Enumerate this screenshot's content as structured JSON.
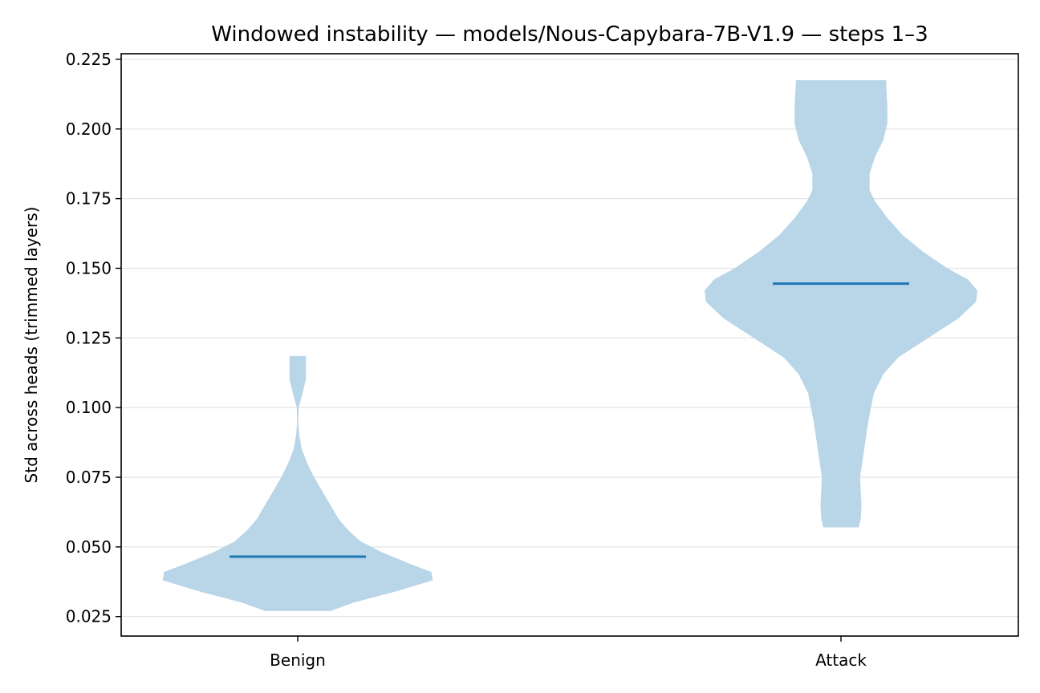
{
  "chart_data": {
    "type": "violin",
    "title": "Windowed instability — models/Nous-Capybara-7B-V1.9 — steps 1–3",
    "xlabel": "",
    "ylabel": "Std across heads (trimmed layers)",
    "categories": [
      "Benign",
      "Attack"
    ],
    "ylim": [
      0.018,
      0.227
    ],
    "yticks": [
      0.025,
      0.05,
      0.075,
      0.1,
      0.125,
      0.15,
      0.175,
      0.2,
      0.225
    ],
    "ytick_labels": [
      "0.025",
      "0.050",
      "0.075",
      "0.100",
      "0.125",
      "0.150",
      "0.175",
      "0.200",
      "0.225"
    ],
    "grid": "y",
    "legend": "none",
    "colors": {
      "violin_fill": "#b9d5e8",
      "median_line": "#1f77b4",
      "grid": "#e3e3e3"
    },
    "series": [
      {
        "category": "Benign",
        "min": 0.027,
        "max": 0.1185,
        "median": 0.0465,
        "density": [
          [
            0.027,
            0.24
          ],
          [
            0.03,
            0.41
          ],
          [
            0.034,
            0.72
          ],
          [
            0.038,
            0.99
          ],
          [
            0.041,
            0.98
          ],
          [
            0.044,
            0.82
          ],
          [
            0.048,
            0.62
          ],
          [
            0.052,
            0.46
          ],
          [
            0.056,
            0.37
          ],
          [
            0.06,
            0.3
          ],
          [
            0.065,
            0.24
          ],
          [
            0.07,
            0.18
          ],
          [
            0.075,
            0.12
          ],
          [
            0.08,
            0.07
          ],
          [
            0.085,
            0.03
          ],
          [
            0.09,
            0.012
          ],
          [
            0.095,
            0.004
          ],
          [
            0.1,
            0.007
          ],
          [
            0.105,
            0.035
          ],
          [
            0.11,
            0.06
          ],
          [
            0.1185,
            0.06
          ]
        ]
      },
      {
        "category": "Attack",
        "min": 0.057,
        "max": 0.2175,
        "median": 0.1445,
        "density": [
          [
            0.057,
            0.13
          ],
          [
            0.06,
            0.145
          ],
          [
            0.065,
            0.15
          ],
          [
            0.075,
            0.14
          ],
          [
            0.085,
            0.17
          ],
          [
            0.095,
            0.2
          ],
          [
            0.105,
            0.24
          ],
          [
            0.112,
            0.31
          ],
          [
            0.118,
            0.42
          ],
          [
            0.125,
            0.64
          ],
          [
            0.132,
            0.86
          ],
          [
            0.138,
            0.99
          ],
          [
            0.142,
            1.0
          ],
          [
            0.146,
            0.93
          ],
          [
            0.15,
            0.78
          ],
          [
            0.156,
            0.6
          ],
          [
            0.162,
            0.45
          ],
          [
            0.168,
            0.34
          ],
          [
            0.174,
            0.25
          ],
          [
            0.178,
            0.21
          ],
          [
            0.184,
            0.21
          ],
          [
            0.19,
            0.25
          ],
          [
            0.196,
            0.31
          ],
          [
            0.202,
            0.34
          ],
          [
            0.208,
            0.34
          ],
          [
            0.2175,
            0.33
          ]
        ]
      }
    ]
  }
}
